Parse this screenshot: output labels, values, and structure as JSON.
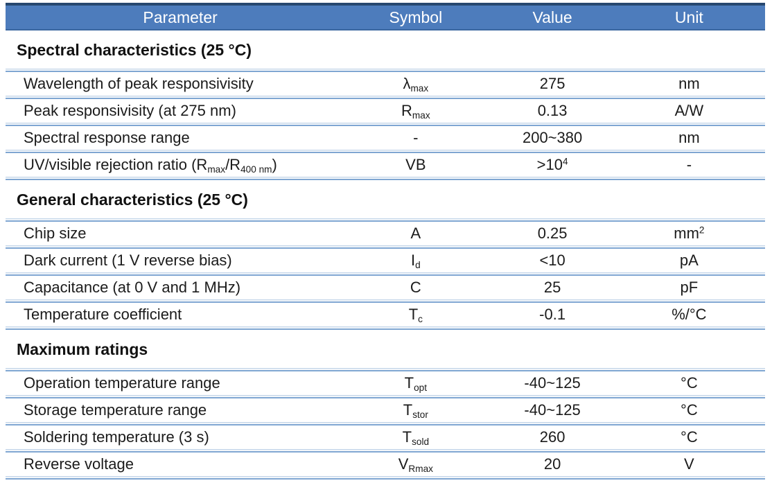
{
  "table": {
    "columns": [
      "Parameter",
      "Symbol",
      "Value",
      "Unit"
    ],
    "sections": [
      {
        "title": "Spectral characteristics (25 °C)",
        "slug": "spectral-characteristics",
        "rows": [
          {
            "parameter": [
              {
                "text": "Wavelength of peak responsivisity"
              }
            ],
            "symbol": [
              {
                "text": "λ"
              },
              {
                "text": "max",
                "style": "sub"
              }
            ],
            "value": [
              {
                "text": "275"
              }
            ],
            "unit": [
              {
                "text": "nm"
              }
            ]
          },
          {
            "parameter": [
              {
                "text": "Peak responsivisity (at 275 nm)"
              }
            ],
            "symbol": [
              {
                "text": "R"
              },
              {
                "text": "max",
                "style": "sub"
              }
            ],
            "value": [
              {
                "text": "0.13"
              }
            ],
            "unit": [
              {
                "text": "A/W"
              }
            ]
          },
          {
            "parameter": [
              {
                "text": "Spectral response range"
              }
            ],
            "symbol": [
              {
                "text": "-"
              }
            ],
            "value": [
              {
                "text": "200~380"
              }
            ],
            "unit": [
              {
                "text": "nm"
              }
            ]
          },
          {
            "parameter": [
              {
                "text": "UV/visible rejection ratio (R"
              },
              {
                "text": "max",
                "style": "sub"
              },
              {
                "text": "/R",
                "style": null
              },
              {
                "text": "400 nm",
                "style": "sub"
              },
              {
                "text": ")"
              }
            ],
            "symbol": [
              {
                "text": "VB"
              }
            ],
            "value": [
              {
                "text": ">10"
              },
              {
                "text": "4",
                "style": "sup"
              }
            ],
            "unit": [
              {
                "text": "-"
              }
            ]
          }
        ]
      },
      {
        "title": "General characteristics (25 °C)",
        "slug": "general-characteristics",
        "rows": [
          {
            "parameter": [
              {
                "text": "Chip size"
              }
            ],
            "symbol": [
              {
                "text": "A"
              }
            ],
            "value": [
              {
                "text": "0.25"
              }
            ],
            "unit": [
              {
                "text": "mm"
              },
              {
                "text": "2",
                "style": "sup"
              }
            ]
          },
          {
            "parameter": [
              {
                "text": "Dark current (1 V reverse bias)"
              }
            ],
            "symbol": [
              {
                "text": "I"
              },
              {
                "text": "d",
                "style": "sub"
              }
            ],
            "value": [
              {
                "text": "<10"
              }
            ],
            "unit": [
              {
                "text": "pA"
              }
            ]
          },
          {
            "parameter": [
              {
                "text": "Capacitance (at 0 V and 1 MHz)"
              }
            ],
            "symbol": [
              {
                "text": "C"
              }
            ],
            "value": [
              {
                "text": "25"
              }
            ],
            "unit": [
              {
                "text": "pF"
              }
            ]
          },
          {
            "parameter": [
              {
                "text": "Temperature coefficient"
              }
            ],
            "symbol": [
              {
                "text": "T"
              },
              {
                "text": "c",
                "style": "sub"
              }
            ],
            "value": [
              {
                "text": "-0.1"
              }
            ],
            "unit": [
              {
                "text": "%/°C"
              }
            ]
          }
        ]
      },
      {
        "title": "Maximum ratings",
        "slug": "maximum-ratings",
        "rows": [
          {
            "parameter": [
              {
                "text": "Operation temperature range"
              }
            ],
            "symbol": [
              {
                "text": "T"
              },
              {
                "text": "opt",
                "style": "sub"
              }
            ],
            "value": [
              {
                "text": "-40~125"
              }
            ],
            "unit": [
              {
                "text": "°C"
              }
            ]
          },
          {
            "parameter": [
              {
                "text": "Storage temperature range"
              }
            ],
            "symbol": [
              {
                "text": "T"
              },
              {
                "text": "stor",
                "style": "sub"
              }
            ],
            "value": [
              {
                "text": "-40~125"
              }
            ],
            "unit": [
              {
                "text": "°C"
              }
            ]
          },
          {
            "parameter": [
              {
                "text": "Soldering temperature (3 s)"
              }
            ],
            "symbol": [
              {
                "text": "T"
              },
              {
                "text": "sold",
                "style": "sub"
              }
            ],
            "value": [
              {
                "text": "260"
              }
            ],
            "unit": [
              {
                "text": "°C"
              }
            ]
          },
          {
            "parameter": [
              {
                "text": "Reverse voltage"
              }
            ],
            "symbol": [
              {
                "text": "V"
              },
              {
                "text": "Rmax",
                "style": "sub"
              }
            ],
            "value": [
              {
                "text": "20"
              }
            ],
            "unit": [
              {
                "text": "V"
              }
            ]
          }
        ]
      }
    ]
  },
  "colors": {
    "header_fill": "#4d7cbc",
    "header_text": "#ffffff",
    "header_border_top": "#27486f",
    "header_border_bottom": "#3a66a0",
    "divider_light": "#c6d7ea",
    "divider_dark": "#7fa6d2",
    "body_text": "#1b1b1b",
    "section_title_text": "#111111",
    "background": "#ffffff"
  }
}
